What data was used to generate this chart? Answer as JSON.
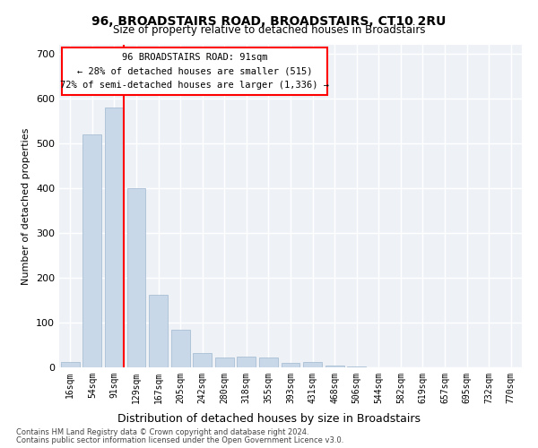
{
  "title": "96, BROADSTAIRS ROAD, BROADSTAIRS, CT10 2RU",
  "subtitle": "Size of property relative to detached houses in Broadstairs",
  "xlabel": "Distribution of detached houses by size in Broadstairs",
  "ylabel": "Number of detached properties",
  "bar_color": "#c8d8e8",
  "bar_edge_color": "#a0b8d0",
  "bg_color": "#eef2f7",
  "grid_color": "#ffffff",
  "categories": [
    "16sqm",
    "54sqm",
    "91sqm",
    "129sqm",
    "167sqm",
    "205sqm",
    "242sqm",
    "280sqm",
    "318sqm",
    "355sqm",
    "393sqm",
    "431sqm",
    "468sqm",
    "506sqm",
    "544sqm",
    "582sqm",
    "619sqm",
    "657sqm",
    "695sqm",
    "732sqm",
    "770sqm"
  ],
  "values": [
    13,
    520,
    580,
    400,
    163,
    85,
    33,
    22,
    25,
    22,
    10,
    12,
    5,
    2,
    0,
    0,
    0,
    0,
    0,
    0,
    0
  ],
  "property_label": "96 BROADSTAIRS ROAD: 91sqm",
  "annotation_line1": "← 28% of detached houses are smaller (515)",
  "annotation_line2": "72% of semi-detached houses are larger (1,336) →",
  "property_bar_index": 2,
  "ylim": [
    0,
    720
  ],
  "yticks": [
    0,
    100,
    200,
    300,
    400,
    500,
    600,
    700
  ],
  "footnote1": "Contains HM Land Registry data © Crown copyright and database right 2024.",
  "footnote2": "Contains public sector information licensed under the Open Government Licence v3.0."
}
